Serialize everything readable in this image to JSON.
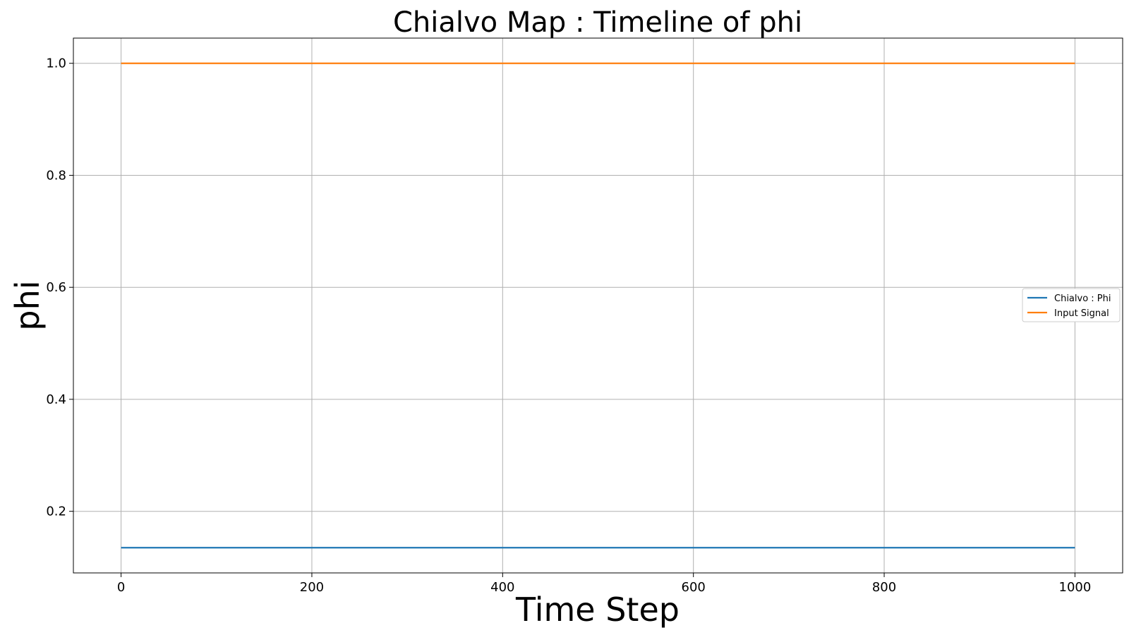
{
  "chart_data": {
    "type": "line",
    "title": "Chialvo Map : Timeline of phi",
    "xlabel": "Time Step",
    "ylabel": "phi",
    "xlim": [
      -50,
      1050
    ],
    "ylim": [
      0.09,
      1.045
    ],
    "xticks": [
      0,
      200,
      400,
      600,
      800,
      1000
    ],
    "xtick_labels": [
      "0",
      "200",
      "400",
      "600",
      "800",
      "1000"
    ],
    "yticks": [
      0.2,
      0.4,
      0.6,
      0.8,
      1.0
    ],
    "ytick_labels": [
      "0.2",
      "0.4",
      "0.6",
      "0.8",
      "1.0"
    ],
    "grid": true,
    "legend_position": "center-right",
    "series": [
      {
        "name": "Chialvo : Phi",
        "color": "#1f77b4",
        "x": [
          0,
          1000
        ],
        "y": [
          0.135,
          0.135
        ]
      },
      {
        "name": "Input Signal",
        "color": "#ff7f0e",
        "x": [
          0,
          1000
        ],
        "y": [
          1.0,
          1.0
        ]
      }
    ]
  }
}
